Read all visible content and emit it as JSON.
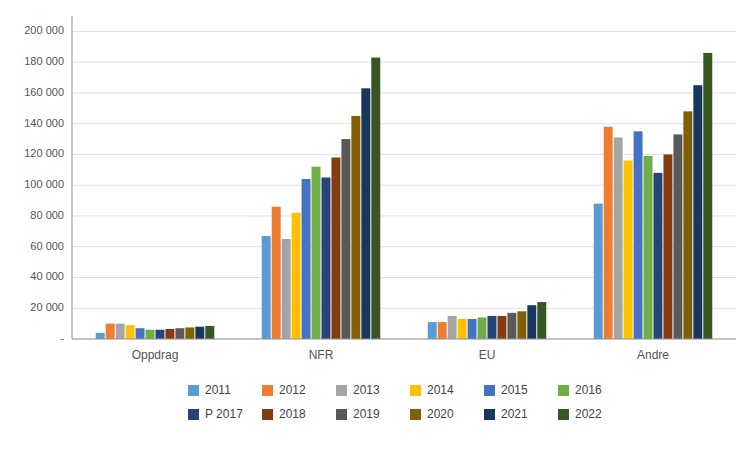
{
  "chart_data": {
    "type": "bar",
    "categories": [
      "Oppdrag",
      "NFR",
      "EU",
      "Andre"
    ],
    "series": [
      {
        "name": "2011",
        "color": "#5b9bd5",
        "values": [
          4000,
          67000,
          11000,
          88000
        ]
      },
      {
        "name": "2012",
        "color": "#ed7d31",
        "values": [
          10000,
          86000,
          11000,
          138000
        ]
      },
      {
        "name": "2013",
        "color": "#a5a5a5",
        "values": [
          10000,
          65000,
          15000,
          131000
        ]
      },
      {
        "name": "2014",
        "color": "#ffc000",
        "values": [
          9000,
          82000,
          13000,
          116000
        ]
      },
      {
        "name": "2015",
        "color": "#4472c4",
        "values": [
          7000,
          104000,
          13000,
          135000
        ]
      },
      {
        "name": "2016",
        "color": "#70ad47",
        "values": [
          6000,
          112000,
          14000,
          119000
        ]
      },
      {
        "name": "P 2017",
        "color": "#264478",
        "values": [
          6000,
          105000,
          15000,
          108000
        ]
      },
      {
        "name": "2018",
        "color": "#843c0c",
        "values": [
          6500,
          118000,
          15000,
          120000
        ]
      },
      {
        "name": "2019",
        "color": "#595959",
        "values": [
          7000,
          130000,
          17000,
          133000
        ]
      },
      {
        "name": "2020",
        "color": "#806000",
        "values": [
          7500,
          145000,
          18000,
          148000
        ]
      },
      {
        "name": "2021",
        "color": "#17375e",
        "values": [
          8000,
          163000,
          22000,
          165000
        ]
      },
      {
        "name": "2022",
        "color": "#375623",
        "values": [
          8500,
          183000,
          24000,
          186000
        ]
      }
    ],
    "ylim": [
      0,
      210000
    ],
    "yticks": [
      {
        "value": 0,
        "label": "-"
      },
      {
        "value": 20000,
        "label": "20 000"
      },
      {
        "value": 40000,
        "label": "40 000"
      },
      {
        "value": 60000,
        "label": "60 000"
      },
      {
        "value": 80000,
        "label": "80 000"
      },
      {
        "value": 100000,
        "label": "100 000"
      },
      {
        "value": 120000,
        "label": "120 000"
      },
      {
        "value": 140000,
        "label": "140 000"
      },
      {
        "value": 160000,
        "label": "160 000"
      },
      {
        "value": 180000,
        "label": "180 000"
      },
      {
        "value": 200000,
        "label": "200 000"
      }
    ],
    "grid": true,
    "legend": "bottom"
  }
}
